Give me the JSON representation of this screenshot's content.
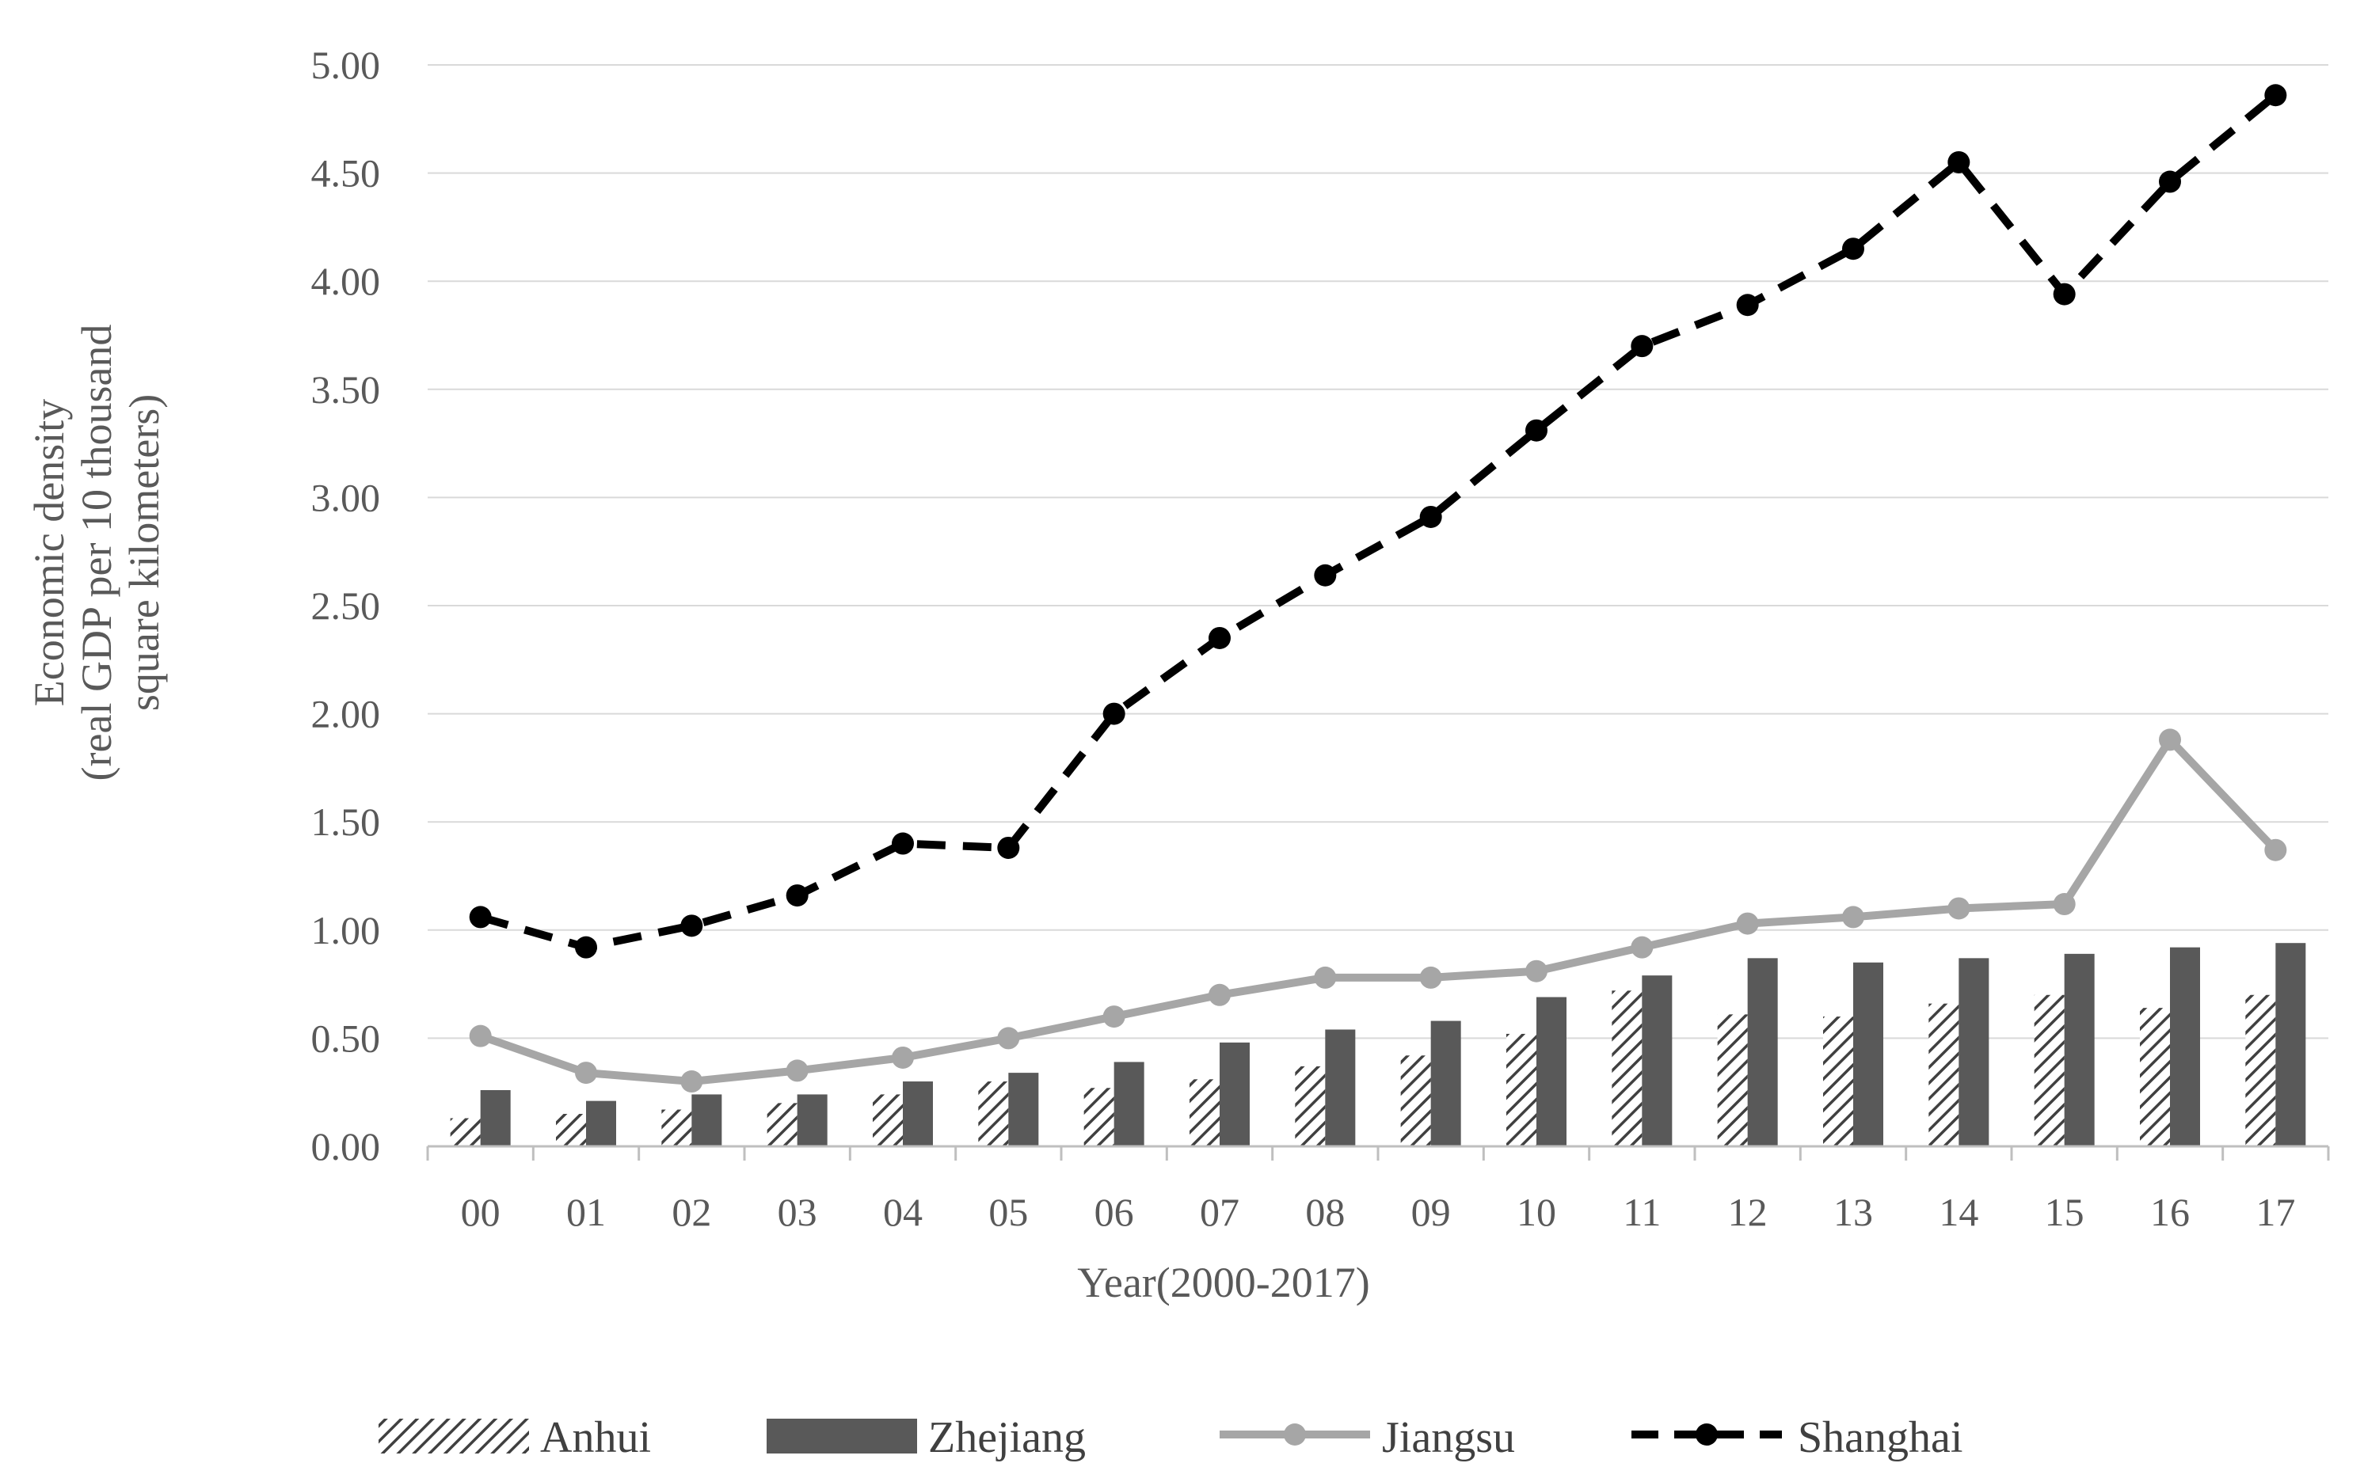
{
  "chart_data": {
    "type": "bar",
    "xlabel": "Year(2000-2017)",
    "ylabel_lines": [
      "Economic density",
      "(real GDP per 10 thousand",
      "square kilometers)"
    ],
    "ylim": [
      0,
      5
    ],
    "yticks": [
      0,
      0.5,
      1,
      1.5,
      2,
      2.5,
      3,
      3.5,
      4,
      4.5,
      5
    ],
    "ytick_labels": [
      "0.00",
      "0.50",
      "1.00",
      "1.50",
      "2.00",
      "2.50",
      "3.00",
      "3.50",
      "4.00",
      "4.50",
      "5.00"
    ],
    "grid": true,
    "legend_position": "bottom",
    "categories": [
      "00",
      "01",
      "02",
      "03",
      "04",
      "05",
      "06",
      "07",
      "08",
      "09",
      "10",
      "11",
      "12",
      "13",
      "14",
      "15",
      "16",
      "17"
    ],
    "series": [
      {
        "name": "Anhui",
        "kind": "bar",
        "style": "hatched",
        "color": "#404040",
        "values": [
          0.13,
          0.15,
          0.17,
          0.2,
          0.24,
          0.3,
          0.27,
          0.31,
          0.37,
          0.42,
          0.52,
          0.72,
          0.61,
          0.6,
          0.66,
          0.7,
          0.64,
          0.7
        ]
      },
      {
        "name": "Zhejiang",
        "kind": "bar",
        "style": "solid",
        "color": "#595959",
        "values": [
          0.26,
          0.21,
          0.24,
          0.24,
          0.3,
          0.34,
          0.39,
          0.48,
          0.54,
          0.58,
          0.69,
          0.79,
          0.87,
          0.85,
          0.87,
          0.89,
          0.92,
          0.94
        ]
      },
      {
        "name": "Jiangsu",
        "kind": "line",
        "style": "solid",
        "color": "#a6a6a6",
        "values": [
          0.51,
          0.34,
          0.3,
          0.35,
          0.41,
          0.5,
          0.6,
          0.7,
          0.78,
          0.78,
          0.81,
          0.92,
          1.03,
          1.06,
          1.1,
          1.12,
          1.88,
          1.37
        ]
      },
      {
        "name": "Shanghai",
        "kind": "line",
        "style": "dashed",
        "color": "#000000",
        "values": [
          1.06,
          0.92,
          1.02,
          1.16,
          1.4,
          1.38,
          2.0,
          2.35,
          2.64,
          2.91,
          3.31,
          3.7,
          3.89,
          4.15,
          4.55,
          3.94,
          4.46,
          4.86
        ]
      }
    ]
  },
  "colors": {
    "grid": "#d9d9d9",
    "axis": "#bfbfbf"
  }
}
